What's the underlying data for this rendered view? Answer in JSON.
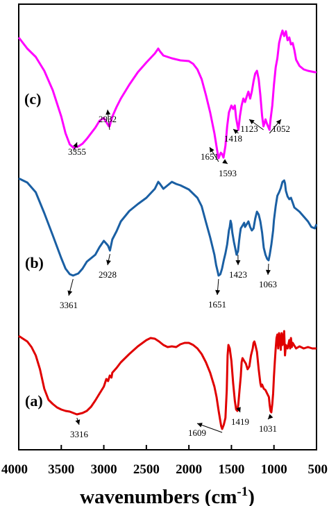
{
  "chart_data": {
    "type": "line",
    "title": "",
    "xlabel": "wavenumbers (cm",
    "xlabel_sup": "-1",
    "xlabel_close": ")",
    "ylabel": "",
    "xlim": [
      4000,
      500
    ],
    "x_reversed": true,
    "grid": false,
    "y_ticks_shown": false,
    "x_ticks": [
      4000,
      3500,
      3000,
      2500,
      2000,
      1500,
      1000,
      500
    ],
    "x_tick_labels": [
      "4000",
      "3500",
      "3000",
      "2500",
      "2000",
      "1500",
      "1000",
      "500"
    ],
    "series": [
      {
        "label": "(c)",
        "color": "#ff00ff",
        "points": [
          [
            4000,
            12
          ],
          [
            3900,
            28
          ],
          [
            3800,
            40
          ],
          [
            3700,
            60
          ],
          [
            3600,
            88
          ],
          [
            3500,
            126
          ],
          [
            3450,
            150
          ],
          [
            3400,
            166
          ],
          [
            3355,
            171
          ],
          [
            3300,
            169
          ],
          [
            3250,
            165
          ],
          [
            3200,
            158
          ],
          [
            3100,
            142
          ],
          [
            3050,
            132
          ],
          [
            3000,
            128
          ],
          [
            2970,
            134
          ],
          [
            2940,
            140
          ],
          [
            2932,
            140
          ],
          [
            2900,
            126
          ],
          [
            2850,
            112
          ],
          [
            2800,
            100
          ],
          [
            2700,
            80
          ],
          [
            2600,
            62
          ],
          [
            2500,
            48
          ],
          [
            2400,
            35
          ],
          [
            2360,
            28
          ],
          [
            2340,
            32
          ],
          [
            2300,
            38
          ],
          [
            2200,
            42
          ],
          [
            2100,
            45
          ],
          [
            2000,
            46
          ],
          [
            1950,
            50
          ],
          [
            1900,
            58
          ],
          [
            1850,
            72
          ],
          [
            1800,
            95
          ],
          [
            1750,
            120
          ],
          [
            1700,
            150
          ],
          [
            1670,
            173
          ],
          [
            1651,
            186
          ],
          [
            1625,
            178
          ],
          [
            1610,
            180
          ],
          [
            1593,
            185
          ],
          [
            1570,
            168
          ],
          [
            1550,
            140
          ],
          [
            1530,
            120
          ],
          [
            1500,
            110
          ],
          [
            1480,
            115
          ],
          [
            1460,
            110
          ],
          [
            1445,
            128
          ],
          [
            1430,
            138
          ],
          [
            1418,
            145
          ],
          [
            1400,
            125
          ],
          [
            1380,
            110
          ],
          [
            1360,
            100
          ],
          [
            1340,
            105
          ],
          [
            1320,
            97
          ],
          [
            1300,
            90
          ],
          [
            1280,
            100
          ],
          [
            1260,
            90
          ],
          [
            1240,
            75
          ],
          [
            1220,
            64
          ],
          [
            1200,
            60
          ],
          [
            1180,
            72
          ],
          [
            1160,
            95
          ],
          [
            1140,
            125
          ],
          [
            1123,
            140
          ],
          [
            1110,
            135
          ],
          [
            1100,
            130
          ],
          [
            1080,
            137
          ],
          [
            1052,
            145
          ],
          [
            1040,
            130
          ],
          [
            1020,
            110
          ],
          [
            1000,
            80
          ],
          [
            980,
            55
          ],
          [
            960,
            42
          ],
          [
            940,
            20
          ],
          [
            920,
            10
          ],
          [
            900,
            2
          ],
          [
            880,
            10
          ],
          [
            860,
            3
          ],
          [
            840,
            16
          ],
          [
            820,
            12
          ],
          [
            800,
            22
          ],
          [
            780,
            20
          ],
          [
            760,
            30
          ],
          [
            740,
            44
          ],
          [
            700,
            53
          ],
          [
            650,
            58
          ],
          [
            600,
            60
          ],
          [
            560,
            61
          ],
          [
            520,
            62
          ],
          [
            500,
            62
          ]
        ]
      },
      {
        "label": "(b)",
        "color": "#1a5fa3",
        "points": [
          [
            4000,
            0
          ],
          [
            3900,
            6
          ],
          [
            3800,
            20
          ],
          [
            3700,
            50
          ],
          [
            3600,
            82
          ],
          [
            3500,
            115
          ],
          [
            3450,
            130
          ],
          [
            3400,
            138
          ],
          [
            3361,
            140
          ],
          [
            3300,
            137
          ],
          [
            3250,
            130
          ],
          [
            3200,
            120
          ],
          [
            3100,
            110
          ],
          [
            3050,
            99
          ],
          [
            3000,
            90
          ],
          [
            2970,
            94
          ],
          [
            2950,
            97
          ],
          [
            2928,
            104
          ],
          [
            2900,
            88
          ],
          [
            2850,
            76
          ],
          [
            2800,
            62
          ],
          [
            2700,
            47
          ],
          [
            2600,
            37
          ],
          [
            2500,
            28
          ],
          [
            2400,
            15
          ],
          [
            2360,
            5
          ],
          [
            2340,
            8
          ],
          [
            2300,
            15
          ],
          [
            2250,
            10
          ],
          [
            2200,
            5
          ],
          [
            2150,
            8
          ],
          [
            2100,
            10
          ],
          [
            2000,
            16
          ],
          [
            1900,
            28
          ],
          [
            1850,
            40
          ],
          [
            1800,
            63
          ],
          [
            1750,
            85
          ],
          [
            1700,
            110
          ],
          [
            1680,
            125
          ],
          [
            1660,
            135
          ],
          [
            1651,
            140
          ],
          [
            1630,
            138
          ],
          [
            1610,
            130
          ],
          [
            1590,
            118
          ],
          [
            1570,
            108
          ],
          [
            1550,
            95
          ],
          [
            1530,
            75
          ],
          [
            1520,
            70
          ],
          [
            1510,
            61
          ],
          [
            1500,
            66
          ],
          [
            1490,
            78
          ],
          [
            1470,
            92
          ],
          [
            1450,
            104
          ],
          [
            1440,
            110
          ],
          [
            1423,
            105
          ],
          [
            1410,
            90
          ],
          [
            1400,
            80
          ],
          [
            1390,
            72
          ],
          [
            1370,
            68
          ],
          [
            1350,
            64
          ],
          [
            1340,
            70
          ],
          [
            1320,
            66
          ],
          [
            1300,
            62
          ],
          [
            1280,
            70
          ],
          [
            1260,
            75
          ],
          [
            1240,
            72
          ],
          [
            1220,
            58
          ],
          [
            1200,
            48
          ],
          [
            1180,
            52
          ],
          [
            1160,
            62
          ],
          [
            1140,
            78
          ],
          [
            1120,
            100
          ],
          [
            1100,
            110
          ],
          [
            1080,
            116
          ],
          [
            1063,
            118
          ],
          [
            1050,
            110
          ],
          [
            1030,
            95
          ],
          [
            1010,
            75
          ],
          [
            1000,
            60
          ],
          [
            980,
            40
          ],
          [
            960,
            25
          ],
          [
            940,
            20
          ],
          [
            920,
            14
          ],
          [
            900,
            5
          ],
          [
            880,
            3
          ],
          [
            870,
            7
          ],
          [
            860,
            18
          ],
          [
            840,
            26
          ],
          [
            820,
            30
          ],
          [
            800,
            28
          ],
          [
            780,
            35
          ],
          [
            760,
            42
          ],
          [
            740,
            44
          ],
          [
            700,
            48
          ],
          [
            650,
            55
          ],
          [
            600,
            62
          ],
          [
            560,
            70
          ],
          [
            520,
            72
          ],
          [
            500,
            66
          ]
        ]
      },
      {
        "label": "(a)",
        "color": "#e00000",
        "points": [
          [
            4000,
            2
          ],
          [
            3900,
            10
          ],
          [
            3850,
            18
          ],
          [
            3800,
            30
          ],
          [
            3750,
            50
          ],
          [
            3700,
            78
          ],
          [
            3650,
            94
          ],
          [
            3600,
            100
          ],
          [
            3550,
            105
          ],
          [
            3500,
            108
          ],
          [
            3450,
            110
          ],
          [
            3400,
            111
          ],
          [
            3316,
            115
          ],
          [
            3250,
            113
          ],
          [
            3200,
            110
          ],
          [
            3150,
            104
          ],
          [
            3100,
            95
          ],
          [
            3050,
            85
          ],
          [
            3000,
            75
          ],
          [
            2970,
            64
          ],
          [
            2950,
            67
          ],
          [
            2930,
            59
          ],
          [
            2910,
            62
          ],
          [
            2900,
            55
          ],
          [
            2850,
            48
          ],
          [
            2800,
            40
          ],
          [
            2700,
            28
          ],
          [
            2600,
            17
          ],
          [
            2500,
            8
          ],
          [
            2450,
            5
          ],
          [
            2400,
            6
          ],
          [
            2350,
            10
          ],
          [
            2300,
            15
          ],
          [
            2250,
            18
          ],
          [
            2200,
            17
          ],
          [
            2150,
            18
          ],
          [
            2100,
            14
          ],
          [
            2050,
            12
          ],
          [
            2000,
            12
          ],
          [
            1950,
            15
          ],
          [
            1900,
            20
          ],
          [
            1850,
            28
          ],
          [
            1800,
            40
          ],
          [
            1750,
            55
          ],
          [
            1700,
            75
          ],
          [
            1675,
            90
          ],
          [
            1650,
            110
          ],
          [
            1630,
            125
          ],
          [
            1620,
            132
          ],
          [
            1609,
            136
          ],
          [
            1590,
            130
          ],
          [
            1570,
            120
          ],
          [
            1555,
            80
          ],
          [
            1545,
            30
          ],
          [
            1535,
            15
          ],
          [
            1520,
            20
          ],
          [
            1500,
            38
          ],
          [
            1480,
            70
          ],
          [
            1460,
            95
          ],
          [
            1445,
            108
          ],
          [
            1430,
            110
          ],
          [
            1419,
            100
          ],
          [
            1405,
            80
          ],
          [
            1390,
            60
          ],
          [
            1380,
            40
          ],
          [
            1370,
            34
          ],
          [
            1350,
            38
          ],
          [
            1330,
            42
          ],
          [
            1310,
            50
          ],
          [
            1290,
            46
          ],
          [
            1270,
            30
          ],
          [
            1250,
            20
          ],
          [
            1240,
            12
          ],
          [
            1230,
            10
          ],
          [
            1220,
            14
          ],
          [
            1200,
            25
          ],
          [
            1180,
            50
          ],
          [
            1160,
            70
          ],
          [
            1150,
            75
          ],
          [
            1140,
            72
          ],
          [
            1120,
            78
          ],
          [
            1100,
            80
          ],
          [
            1080,
            85
          ],
          [
            1060,
            90
          ],
          [
            1050,
            102
          ],
          [
            1040,
            110
          ],
          [
            1031,
            112
          ],
          [
            1020,
            100
          ],
          [
            1010,
            85
          ],
          [
            1000,
            60
          ],
          [
            990,
            40
          ],
          [
            980,
            20
          ],
          [
            970,
            5
          ],
          [
            960,
            0
          ],
          [
            950,
            20
          ],
          [
            940,
            -2
          ],
          [
            930,
            5
          ],
          [
            920,
            22
          ],
          [
            910,
            -2
          ],
          [
            900,
            15
          ],
          [
            880,
            -5
          ],
          [
            870,
            30
          ],
          [
            860,
            15
          ],
          [
            840,
            20
          ],
          [
            820,
            8
          ],
          [
            810,
            20
          ],
          [
            800,
            5
          ],
          [
            790,
            18
          ],
          [
            780,
            12
          ],
          [
            760,
            16
          ],
          [
            740,
            20
          ],
          [
            700,
            17
          ],
          [
            650,
            20
          ],
          [
            600,
            18
          ],
          [
            550,
            20
          ],
          [
            500,
            20
          ]
        ]
      }
    ],
    "annotations": [
      {
        "series": 0,
        "text": "3355",
        "x": 3355
      },
      {
        "series": 0,
        "text": "2932",
        "x": 2932
      },
      {
        "series": 0,
        "text": "1651",
        "x": 1651
      },
      {
        "series": 0,
        "text": "1593",
        "x": 1593
      },
      {
        "series": 0,
        "text": "1418",
        "x": 1418
      },
      {
        "series": 0,
        "text": "1123",
        "x": 1123
      },
      {
        "series": 0,
        "text": "1052",
        "x": 1052
      },
      {
        "series": 1,
        "text": "3361",
        "x": 3361
      },
      {
        "series": 1,
        "text": "2928",
        "x": 2928
      },
      {
        "series": 1,
        "text": "1651",
        "x": 1651
      },
      {
        "series": 1,
        "text": "1423",
        "x": 1423
      },
      {
        "series": 1,
        "text": "1063",
        "x": 1063
      },
      {
        "series": 2,
        "text": "3316",
        "x": 3316
      },
      {
        "series": 2,
        "text": "1609",
        "x": 1609
      },
      {
        "series": 2,
        "text": "1419",
        "x": 1419
      },
      {
        "series": 2,
        "text": "1031",
        "x": 1031
      }
    ]
  }
}
